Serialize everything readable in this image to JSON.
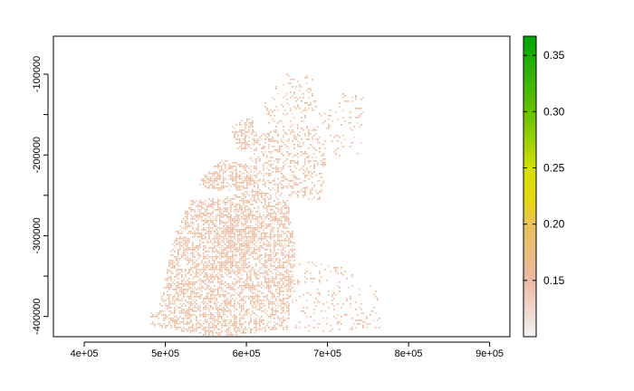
{
  "chart_data": {
    "type": "heatmap",
    "title": "",
    "xlabel": "",
    "ylabel": "",
    "xlim": [
      362000,
      925000
    ],
    "ylim": [
      -425000,
      -53000
    ],
    "x_ticks": [
      {
        "value": 400000,
        "label": "4e+05"
      },
      {
        "value": 500000,
        "label": "5e+05"
      },
      {
        "value": 600000,
        "label": "6e+05"
      },
      {
        "value": 700000,
        "label": "7e+05"
      },
      {
        "value": 800000,
        "label": "8e+05"
      },
      {
        "value": 900000,
        "label": "9e+05"
      }
    ],
    "y_ticks": [
      {
        "value": -100000,
        "label": "-100000"
      },
      {
        "value": -150000,
        "label": ""
      },
      {
        "value": -200000,
        "label": "-200000"
      },
      {
        "value": -250000,
        "label": ""
      },
      {
        "value": -300000,
        "label": "-300000"
      },
      {
        "value": -350000,
        "label": ""
      },
      {
        "value": -400000,
        "label": "-400000"
      }
    ],
    "colorbar": {
      "range": [
        0.1,
        0.367
      ],
      "ticks": [
        {
          "value": 0.15,
          "label": "0.15"
        },
        {
          "value": 0.2,
          "label": "0.20"
        },
        {
          "value": 0.25,
          "label": "0.25"
        },
        {
          "value": 0.3,
          "label": "0.30"
        },
        {
          "value": 0.35,
          "label": "0.35"
        }
      ],
      "stops": [
        {
          "value": 0.1,
          "color": "#F2F2F2"
        },
        {
          "value": 0.15,
          "color": "#EDB9A3"
        },
        {
          "value": 0.2,
          "color": "#E8C157"
        },
        {
          "value": 0.22,
          "color": "#E6D811"
        },
        {
          "value": 0.25,
          "color": "#D3E000"
        },
        {
          "value": 0.3,
          "color": "#63C100"
        },
        {
          "value": 0.367,
          "color": "#00A600"
        }
      ]
    },
    "raster": {
      "cell_color": "#E8A57E",
      "regions": [
        {
          "polygon": [
            [
              490000,
              -395000
            ],
            [
              510000,
              -300000
            ],
            [
              530000,
              -255000
            ],
            [
              580000,
              -250000
            ],
            [
              610000,
              -240000
            ],
            [
              650000,
              -255000
            ],
            [
              660000,
              -320000
            ],
            [
              650000,
              -415000
            ],
            [
              560000,
              -425000
            ],
            [
              480000,
              -410000
            ]
          ],
          "density": 0.5
        },
        {
          "polygon": [
            [
              560000,
              -320000
            ],
            [
              575000,
              -280000
            ],
            [
              600000,
              -265000
            ],
            [
              610000,
              -300000
            ],
            [
              595000,
              -345000
            ],
            [
              565000,
              -345000
            ]
          ],
          "density": 0.72
        },
        {
          "polygon": [
            [
              545000,
              -225000
            ],
            [
              570000,
              -205000
            ],
            [
              605000,
              -212000
            ],
            [
              615000,
              -240000
            ],
            [
              575000,
              -245000
            ],
            [
              540000,
              -238000
            ]
          ],
          "density": 0.55
        },
        {
          "polygon": [
            [
              600000,
              -185000
            ],
            [
              640000,
              -160000
            ],
            [
              685000,
              -165000
            ],
            [
              700000,
              -200000
            ],
            [
              690000,
              -255000
            ],
            [
              640000,
              -250000
            ],
            [
              610000,
              -230000
            ]
          ],
          "density": 0.28
        },
        {
          "polygon": [
            [
              620000,
              -130000
            ],
            [
              650000,
              -95000
            ],
            [
              680000,
              -100000
            ],
            [
              690000,
              -140000
            ],
            [
              660000,
              -165000
            ],
            [
              625000,
              -160000
            ]
          ],
          "density": 0.18
        },
        {
          "polygon": [
            [
              680000,
              -150000
            ],
            [
              720000,
              -120000
            ],
            [
              745000,
              -125000
            ],
            [
              740000,
              -200000
            ],
            [
              700000,
              -205000
            ]
          ],
          "density": 0.1
        },
        {
          "polygon": [
            [
              580000,
              -165000
            ],
            [
              605000,
              -150000
            ],
            [
              615000,
              -185000
            ],
            [
              590000,
              -195000
            ]
          ],
          "density": 0.45
        },
        {
          "polygon": [
            [
              650000,
              -330000
            ],
            [
              700000,
              -330000
            ],
            [
              760000,
              -360000
            ],
            [
              765000,
              -415000
            ],
            [
              660000,
              -420000
            ]
          ],
          "density": 0.12
        },
        {
          "polygon": [
            [
              480000,
              -395000
            ],
            [
              500000,
              -390000
            ],
            [
              510000,
              -410000
            ],
            [
              485000,
              -412000
            ]
          ],
          "density": 0.4
        }
      ]
    }
  }
}
